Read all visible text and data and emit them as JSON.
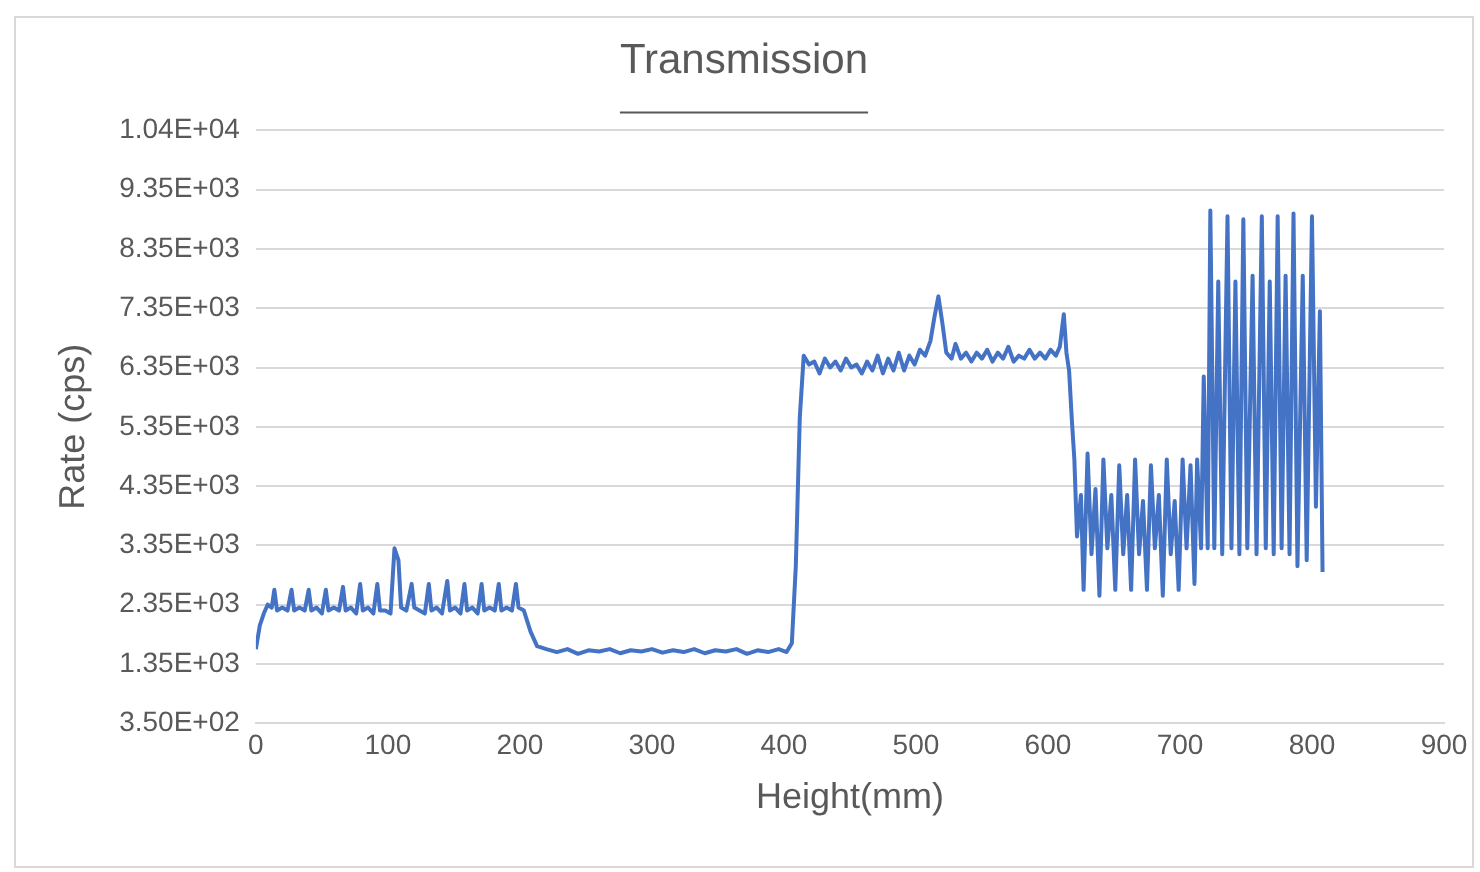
{
  "chart_data": {
    "type": "line",
    "title": "Transmission",
    "xlabel": "Height(mm)",
    "ylabel": "Rate (cps)",
    "xlim": [
      0,
      900
    ],
    "xticks": [
      0,
      100,
      200,
      300,
      400,
      500,
      600,
      700,
      800,
      900
    ],
    "ylim": [
      350,
      10350
    ],
    "yticks": [
      {
        "value": 350,
        "label": "3.50E+02"
      },
      {
        "value": 1350,
        "label": "1.35E+03"
      },
      {
        "value": 2350,
        "label": "2.35E+03"
      },
      {
        "value": 3350,
        "label": "3.35E+03"
      },
      {
        "value": 4350,
        "label": "4.35E+03"
      },
      {
        "value": 5350,
        "label": "5.35E+03"
      },
      {
        "value": 6350,
        "label": "6.35E+03"
      },
      {
        "value": 7350,
        "label": "7.35E+03"
      },
      {
        "value": 8350,
        "label": "8.35E+03"
      },
      {
        "value": 9350,
        "label": "9.35E+03"
      },
      {
        "value": 10350,
        "label": "1.04E+04"
      }
    ],
    "grid": "y",
    "legend": false,
    "marker": "none",
    "line_style": "solid",
    "x": [
      0,
      3,
      6,
      9,
      12,
      14,
      16,
      20,
      24,
      27,
      29,
      33,
      37,
      40,
      42,
      46,
      50,
      53,
      55,
      59,
      63,
      66,
      68,
      72,
      76,
      79,
      81,
      85,
      89,
      92,
      94,
      98,
      102,
      105,
      108,
      110,
      114,
      118,
      120,
      124,
      128,
      131,
      133,
      137,
      141,
      145,
      147,
      151,
      155,
      158,
      160,
      164,
      168,
      171,
      173,
      177,
      181,
      184,
      186,
      190,
      194,
      197,
      199,
      203,
      208,
      213,
      220,
      228,
      236,
      244,
      252,
      260,
      268,
      276,
      284,
      292,
      300,
      308,
      316,
      324,
      332,
      340,
      348,
      356,
      364,
      372,
      380,
      388,
      396,
      402,
      406,
      409,
      412,
      415,
      419,
      423,
      427,
      431,
      435,
      439,
      443,
      447,
      451,
      455,
      459,
      463,
      467,
      471,
      475,
      479,
      483,
      487,
      491,
      495,
      499,
      503,
      507,
      511,
      514,
      517,
      520,
      523,
      527,
      530,
      534,
      538,
      542,
      546,
      550,
      554,
      558,
      562,
      566,
      570,
      574,
      578,
      582,
      586,
      590,
      594,
      598,
      602,
      606,
      609,
      612,
      614,
      616,
      618,
      620,
      622,
      625,
      627,
      630,
      633,
      636,
      639,
      642,
      645,
      648,
      651,
      654,
      657,
      660,
      663,
      666,
      669,
      672,
      675,
      678,
      681,
      684,
      687,
      690,
      693,
      696,
      699,
      702,
      705,
      708,
      711,
      713,
      716,
      718,
      721,
      723,
      726,
      729,
      732,
      736,
      739,
      742,
      745,
      748,
      751,
      755,
      758,
      762,
      765,
      768,
      771,
      774,
      777,
      780,
      783,
      786,
      789,
      793,
      796,
      800,
      803,
      806,
      808
    ],
    "series": [
      {
        "color": "#4472c4",
        "values": [
          1600,
          2000,
          2200,
          2350,
          2300,
          2600,
          2250,
          2300,
          2250,
          2600,
          2250,
          2300,
          2250,
          2600,
          2250,
          2300,
          2200,
          2600,
          2250,
          2300,
          2250,
          2650,
          2250,
          2300,
          2200,
          2700,
          2250,
          2300,
          2200,
          2700,
          2250,
          2250,
          2200,
          3300,
          3100,
          2300,
          2250,
          2700,
          2300,
          2250,
          2200,
          2700,
          2250,
          2300,
          2200,
          2750,
          2250,
          2300,
          2200,
          2700,
          2250,
          2300,
          2200,
          2700,
          2250,
          2300,
          2250,
          2700,
          2250,
          2300,
          2250,
          2700,
          2300,
          2250,
          1900,
          1650,
          1600,
          1550,
          1600,
          1520,
          1580,
          1560,
          1600,
          1530,
          1580,
          1560,
          1600,
          1540,
          1580,
          1550,
          1600,
          1530,
          1580,
          1560,
          1600,
          1520,
          1580,
          1550,
          1600,
          1550,
          1700,
          3000,
          5500,
          6550,
          6400,
          6450,
          6250,
          6500,
          6350,
          6450,
          6300,
          6500,
          6350,
          6400,
          6250,
          6450,
          6300,
          6550,
          6250,
          6500,
          6300,
          6600,
          6300,
          6550,
          6400,
          6650,
          6550,
          6800,
          7200,
          7550,
          7100,
          6600,
          6500,
          6750,
          6500,
          6600,
          6450,
          6600,
          6500,
          6650,
          6450,
          6600,
          6500,
          6700,
          6450,
          6550,
          6500,
          6650,
          6500,
          6600,
          6500,
          6650,
          6550,
          6700,
          7250,
          6600,
          6300,
          5500,
          4800,
          3500,
          4200,
          2600,
          4900,
          3200,
          4300,
          2500,
          4800,
          3300,
          4200,
          2600,
          4700,
          3200,
          4200,
          2600,
          4800,
          3200,
          4100,
          2600,
          4700,
          3300,
          4200,
          2500,
          4800,
          3200,
          4100,
          2600,
          4800,
          3300,
          4700,
          2700,
          4800,
          3300,
          6200,
          3300,
          9000,
          3300,
          7800,
          3200,
          8900,
          3300,
          7800,
          3200,
          8850,
          3300,
          7900,
          3200,
          8900,
          3300,
          7800,
          3200,
          8900,
          3300,
          7900,
          3200,
          8950,
          3000,
          7900,
          3100,
          8900,
          4000,
          7300,
          2900
        ]
      }
    ]
  }
}
